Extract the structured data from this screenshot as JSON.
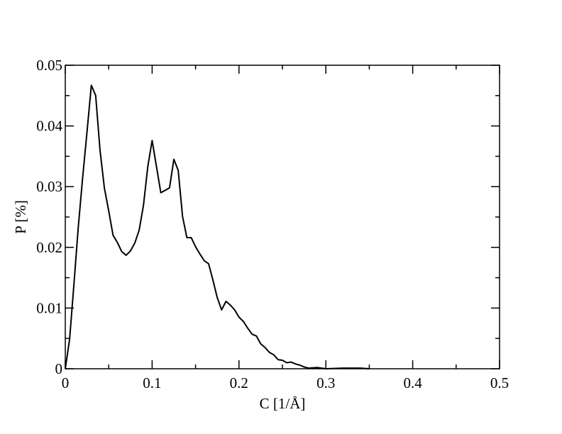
{
  "chart_data": {
    "type": "line",
    "xlabel": "C [1/Å]",
    "ylabel": "P [%]",
    "x": [
      0,
      0.005,
      0.01,
      0.015,
      0.02,
      0.025,
      0.03,
      0.035,
      0.04,
      0.045,
      0.05,
      0.055,
      0.06,
      0.065,
      0.07,
      0.075,
      0.08,
      0.085,
      0.09,
      0.095,
      0.1,
      0.105,
      0.11,
      0.115,
      0.12,
      0.125,
      0.13,
      0.135,
      0.14,
      0.145,
      0.15,
      0.155,
      0.16,
      0.165,
      0.17,
      0.175,
      0.18,
      0.185,
      0.19,
      0.195,
      0.2,
      0.205,
      0.21,
      0.215,
      0.22,
      0.225,
      0.23,
      0.235,
      0.24,
      0.245,
      0.25,
      0.255,
      0.26,
      0.265,
      0.27,
      0.275,
      0.28,
      0.29,
      0.3,
      0.32,
      0.34,
      0.35
    ],
    "values": [
      0,
      0.0049,
      0.014,
      0.0234,
      0.0315,
      0.039,
      0.0467,
      0.045,
      0.036,
      0.0298,
      0.026,
      0.022,
      0.0208,
      0.0193,
      0.0187,
      0.0194,
      0.0207,
      0.0228,
      0.0269,
      0.0333,
      0.0376,
      0.0333,
      0.029,
      0.0294,
      0.0298,
      0.0345,
      0.0327,
      0.0251,
      0.0216,
      0.0216,
      0.0201,
      0.0189,
      0.0178,
      0.0173,
      0.0146,
      0.0117,
      0.0097,
      0.0111,
      0.0105,
      0.0097,
      0.0085,
      0.0078,
      0.0067,
      0.0057,
      0.0054,
      0.0041,
      0.0035,
      0.0027,
      0.0023,
      0.0015,
      0.0014,
      0.001,
      0.0011,
      0.0008,
      0.0006,
      0.0003,
      0.0001,
      0.0002,
      0,
      0.0001,
      0.0001,
      0
    ],
    "color": "#000000",
    "xlim": [
      0,
      0.5
    ],
    "ylim": [
      0,
      0.05
    ],
    "xticks": [
      0,
      0.1,
      0.2,
      0.3,
      0.4,
      0.5
    ],
    "yticks": [
      0,
      0.01,
      0.02,
      0.03,
      0.04,
      0.05
    ],
    "xminorticks": [
      0.05,
      0.15,
      0.25,
      0.35,
      0.45
    ],
    "yminorticks": [
      0.005,
      0.015,
      0.025,
      0.035,
      0.045
    ]
  }
}
